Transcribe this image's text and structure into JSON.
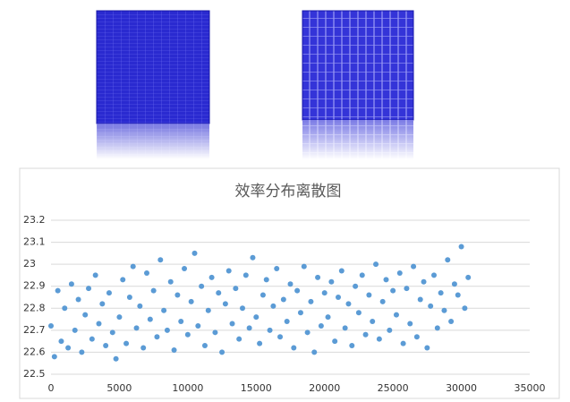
{
  "chart_data": {
    "type": "scatter",
    "title": "效率分布离散图",
    "color": "#5b9bd5",
    "grid": true,
    "xlim": [
      0,
      35000
    ],
    "xticks": [
      0,
      5000,
      10000,
      15000,
      20000,
      25000,
      30000,
      35000
    ],
    "ylim": [
      22.5,
      23.2
    ],
    "yticks": [
      22.5,
      22.6,
      22.7,
      22.8,
      22.9,
      23,
      23.1,
      23.2
    ],
    "x": [
      0,
      250,
      500,
      750,
      1000,
      1250,
      1500,
      1750,
      2000,
      2250,
      2500,
      2750,
      3000,
      3250,
      3500,
      3750,
      4000,
      4250,
      4500,
      4750,
      5000,
      5250,
      5500,
      5750,
      6000,
      6250,
      6500,
      6750,
      7000,
      7250,
      7500,
      7750,
      8000,
      8250,
      8500,
      8750,
      9000,
      9250,
      9500,
      9750,
      10000,
      10250,
      10500,
      10750,
      11000,
      11250,
      11500,
      11750,
      12000,
      12250,
      12500,
      12750,
      13000,
      13250,
      13500,
      13750,
      14000,
      14250,
      14500,
      14750,
      15000,
      15250,
      15500,
      15750,
      16000,
      16250,
      16500,
      16750,
      17000,
      17250,
      17500,
      17750,
      18000,
      18250,
      18500,
      18750,
      19000,
      19250,
      19500,
      19750,
      20000,
      20250,
      20500,
      20750,
      21000,
      21250,
      21500,
      21750,
      22000,
      22250,
      22500,
      22750,
      23000,
      23250,
      23500,
      23750,
      24000,
      24250,
      24500,
      24750,
      25000,
      25250,
      25500,
      25750,
      26000,
      26250,
      26500,
      26750,
      27000,
      27250,
      27500,
      27750,
      28000,
      28250,
      28500,
      28750,
      29000,
      29250,
      29500,
      29750,
      30000,
      30250,
      30500
    ],
    "y": [
      22.72,
      22.58,
      22.88,
      22.65,
      22.8,
      22.62,
      22.91,
      22.7,
      22.84,
      22.6,
      22.77,
      22.89,
      22.66,
      22.95,
      22.73,
      22.82,
      22.63,
      22.87,
      22.69,
      22.57,
      22.76,
      22.93,
      22.64,
      22.85,
      22.99,
      22.71,
      22.81,
      22.62,
      22.96,
      22.75,
      22.88,
      22.67,
      23.02,
      22.79,
      22.7,
      22.92,
      22.61,
      22.86,
      22.74,
      22.98,
      22.68,
      22.83,
      23.05,
      22.72,
      22.9,
      22.63,
      22.79,
      22.94,
      22.69,
      22.87,
      22.6,
      22.82,
      22.97,
      22.73,
      22.89,
      22.66,
      22.8,
      22.95,
      22.71,
      23.03,
      22.76,
      22.64,
      22.86,
      22.93,
      22.7,
      22.81,
      22.98,
      22.67,
      22.84,
      22.74,
      22.91,
      22.62,
      22.88,
      22.78,
      22.99,
      22.69,
      22.83,
      22.6,
      22.94,
      22.72,
      22.87,
      22.76,
      22.92,
      22.65,
      22.85,
      22.97,
      22.71,
      22.82,
      22.63,
      22.9,
      22.78,
      22.95,
      22.68,
      22.86,
      22.74,
      23.0,
      22.66,
      22.83,
      22.93,
      22.7,
      22.88,
      22.77,
      22.96,
      22.64,
      22.89,
      22.73,
      22.99,
      22.67,
      22.84,
      22.92,
      22.62,
      22.81,
      22.95,
      22.71,
      22.87,
      22.79,
      23.02,
      22.74,
      22.91,
      22.86,
      23.08,
      22.8,
      22.94
    ]
  }
}
